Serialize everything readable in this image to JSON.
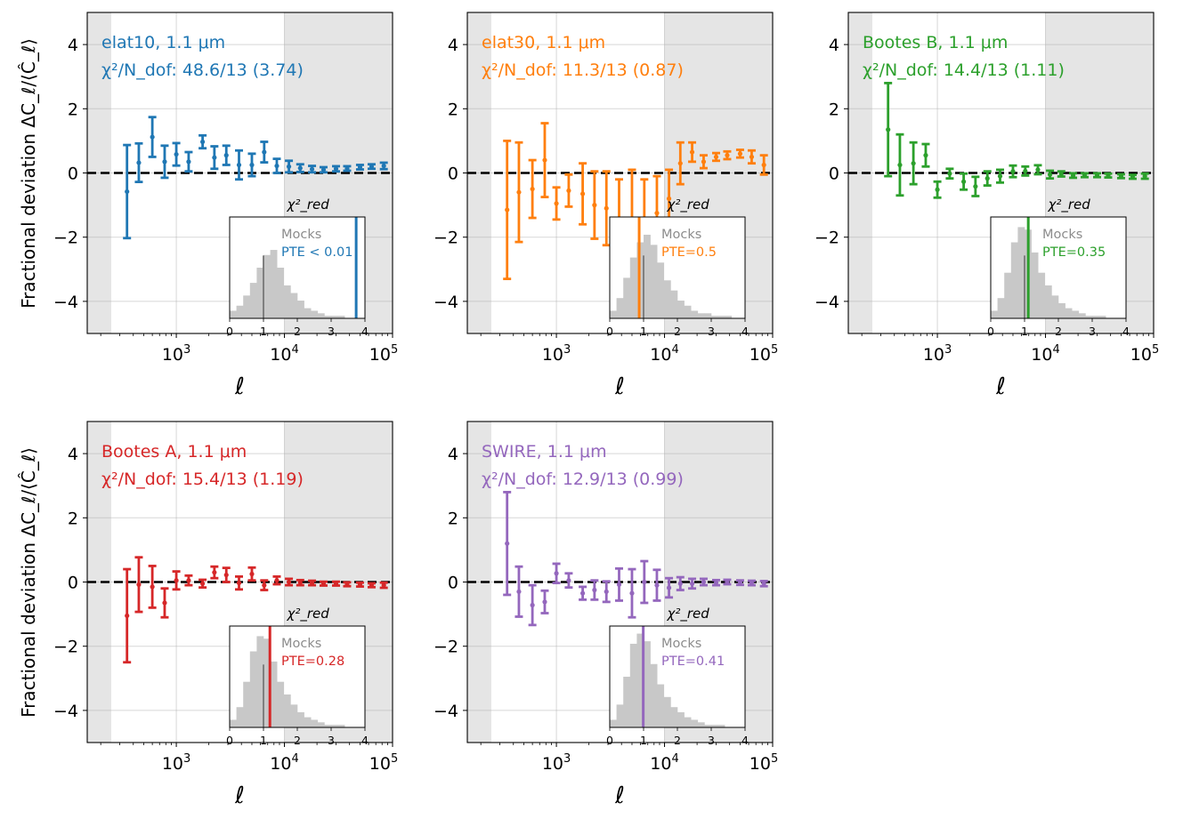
{
  "figure": {
    "ylabel": "Fractional deviation ΔC_ℓ/⟨Ĉ_ℓ⟩",
    "xlabel": "ℓ",
    "y_ticks": [
      4,
      2,
      0,
      -2,
      -4
    ],
    "y_tick_labels": [
      "4",
      "2",
      "0",
      "−2",
      "−4"
    ],
    "x_tick_labels": [
      {
        "base": "10",
        "exp": "3"
      },
      {
        "base": "10",
        "exp": "4"
      },
      {
        "base": "10",
        "exp": "5"
      }
    ],
    "inset": {
      "label": "χ²_red",
      "mocks_label": "Mocks",
      "x_ticks": [
        "0",
        "1",
        "2",
        "3",
        "4"
      ]
    },
    "colors": {
      "elat10": "#1f77b4",
      "elat30": "#ff7f0e",
      "bootesB": "#2ca02c",
      "bootesA": "#d62728",
      "swire": "#9467bd",
      "mock_hist": "#c8c8c8",
      "mock_line": "#7f7f7f",
      "masked_region": "#e5e5e5",
      "mocks_text": "#8c8c8c"
    }
  },
  "chart_data": [
    {
      "type": "errorbar",
      "field": "elat10",
      "title_name": "elat10, 1.1 μm",
      "chi2_label": "χ²/N_dof:",
      "chi2_value": "48.6/13 (3.74)",
      "pte_text": "PTE < 0.01",
      "chi2_red": 3.74,
      "xscale": "log",
      "xlim": [
        150,
        100000
      ],
      "ylim": [
        -5,
        5
      ],
      "masked_ranges": [
        [
          150,
          250
        ],
        [
          10000,
          100000
        ]
      ],
      "ell": [
        350,
        450,
        600,
        780,
        1000,
        1300,
        1750,
        2250,
        2900,
        3800,
        5000,
        6500,
        8500,
        11000,
        14000,
        18000,
        23000,
        30000,
        38000,
        50000,
        64000,
        83000
      ],
      "y": [
        -0.58,
        0.32,
        1.12,
        0.35,
        0.58,
        0.35,
        0.97,
        0.48,
        0.55,
        0.25,
        0.25,
        0.65,
        0.22,
        0.2,
        0.15,
        0.12,
        0.1,
        0.13,
        0.14,
        0.18,
        0.2,
        0.22
      ],
      "yerr": [
        1.45,
        0.6,
        0.62,
        0.5,
        0.35,
        0.3,
        0.2,
        0.35,
        0.3,
        0.45,
        0.35,
        0.32,
        0.22,
        0.18,
        0.12,
        0.1,
        0.08,
        0.08,
        0.07,
        0.07,
        0.07,
        0.1
      ],
      "mock_hist": [
        3,
        5,
        9,
        14,
        20,
        25,
        27,
        20,
        13,
        10,
        7,
        4,
        3,
        2,
        1,
        1,
        1,
        0,
        0,
        0
      ]
    },
    {
      "type": "errorbar",
      "field": "elat30",
      "title_name": "elat30, 1.1 μm",
      "chi2_label": "χ²/N_dof:",
      "chi2_value": "11.3/13 (0.87)",
      "pte_text": "PTE=0.5",
      "chi2_red": 0.87,
      "xscale": "log",
      "xlim": [
        150,
        100000
      ],
      "ylim": [
        -5,
        5
      ],
      "masked_ranges": [
        [
          150,
          250
        ],
        [
          10000,
          100000
        ]
      ],
      "ell": [
        350,
        450,
        600,
        780,
        1000,
        1300,
        1750,
        2250,
        2900,
        3800,
        5000,
        6500,
        8500,
        11000,
        14000,
        18000,
        23000,
        30000,
        38000,
        50000,
        64000,
        83000
      ],
      "y": [
        -1.15,
        -0.6,
        -0.5,
        0.4,
        -0.95,
        -0.55,
        -0.65,
        -1.0,
        -1.1,
        -1.45,
        -1.55,
        -1.8,
        -1.25,
        -0.8,
        0.3,
        0.65,
        0.35,
        0.5,
        0.55,
        0.6,
        0.5,
        0.25
      ],
      "yerr": [
        2.15,
        1.55,
        0.9,
        1.15,
        0.5,
        0.5,
        0.95,
        1.05,
        1.15,
        1.25,
        1.65,
        1.6,
        1.15,
        0.9,
        0.65,
        0.3,
        0.2,
        0.12,
        0.12,
        0.12,
        0.2,
        0.3
      ],
      "mock_hist": [
        3,
        8,
        16,
        24,
        30,
        33,
        29,
        22,
        15,
        11,
        7,
        5,
        3,
        2,
        2,
        1,
        1,
        1,
        0,
        0
      ]
    },
    {
      "type": "errorbar",
      "field": "bootesB",
      "title_name": "Bootes B, 1.1 μm",
      "chi2_label": "χ²/N_dof:",
      "chi2_value": "14.4/13 (1.11)",
      "pte_text": "PTE=0.35",
      "chi2_red": 1.11,
      "xscale": "log",
      "xlim": [
        150,
        100000
      ],
      "ylim": [
        -5,
        5
      ],
      "masked_ranges": [
        [
          150,
          250
        ],
        [
          10000,
          100000
        ]
      ],
      "ell": [
        350,
        450,
        600,
        780,
        1000,
        1300,
        1750,
        2250,
        2900,
        3800,
        5000,
        6500,
        8500,
        11000,
        14000,
        18000,
        23000,
        30000,
        38000,
        50000,
        64000,
        83000
      ],
      "y": [
        1.35,
        0.25,
        0.3,
        0.55,
        -0.52,
        -0.02,
        -0.27,
        -0.42,
        -0.17,
        -0.1,
        0.05,
        0.06,
        0.1,
        -0.05,
        -0.03,
        -0.08,
        -0.07,
        -0.07,
        -0.08,
        -0.1,
        -0.12,
        -0.1
      ],
      "yerr": [
        1.45,
        0.95,
        0.65,
        0.35,
        0.25,
        0.15,
        0.25,
        0.3,
        0.22,
        0.2,
        0.18,
        0.14,
        0.14,
        0.12,
        0.08,
        0.07,
        0.06,
        0.06,
        0.06,
        0.06,
        0.06,
        0.08
      ],
      "mock_hist": [
        3,
        8,
        18,
        30,
        36,
        35,
        26,
        18,
        13,
        9,
        6,
        4,
        3,
        2,
        1,
        1,
        1,
        0,
        0,
        0
      ]
    },
    {
      "type": "errorbar",
      "field": "bootesA",
      "title_name": "Bootes A, 1.1 μm",
      "chi2_label": "χ²/N_dof:",
      "chi2_value": "15.4/13 (1.19)",
      "pte_text": "PTE=0.28",
      "chi2_red": 1.19,
      "xscale": "log",
      "xlim": [
        150,
        100000
      ],
      "ylim": [
        -5,
        5
      ],
      "masked_ranges": [
        [
          150,
          250
        ],
        [
          10000,
          100000
        ]
      ],
      "ell": [
        350,
        450,
        600,
        780,
        1000,
        1300,
        1750,
        2250,
        2900,
        3800,
        5000,
        6500,
        8500,
        11000,
        14000,
        18000,
        23000,
        30000,
        38000,
        50000,
        64000,
        83000
      ],
      "y": [
        -1.05,
        -0.08,
        -0.15,
        -0.65,
        0.05,
        0.05,
        -0.05,
        0.3,
        0.22,
        -0.03,
        0.25,
        -0.1,
        0.05,
        0.0,
        -0.02,
        -0.03,
        -0.05,
        -0.05,
        -0.07,
        -0.08,
        -0.1,
        -0.1
      ],
      "yerr": [
        1.45,
        0.85,
        0.65,
        0.45,
        0.28,
        0.15,
        0.12,
        0.18,
        0.22,
        0.2,
        0.2,
        0.15,
        0.12,
        0.1,
        0.08,
        0.07,
        0.06,
        0.06,
        0.06,
        0.06,
        0.06,
        0.08
      ],
      "mock_hist": [
        3,
        8,
        18,
        30,
        36,
        35,
        26,
        18,
        13,
        9,
        6,
        4,
        3,
        2,
        1,
        1,
        1,
        0,
        0,
        0
      ]
    },
    {
      "type": "errorbar",
      "field": "swire",
      "title_name": "SWIRE, 1.1 μm",
      "chi2_label": "χ²/N_dof:",
      "chi2_value": "12.9/13 (0.99)",
      "pte_text": "PTE=0.41",
      "chi2_red": 0.99,
      "xscale": "log",
      "xlim": [
        150,
        100000
      ],
      "ylim": [
        -5,
        5
      ],
      "masked_ranges": [
        [
          150,
          250
        ],
        [
          10000,
          100000
        ]
      ],
      "ell": [
        350,
        450,
        600,
        780,
        1000,
        1300,
        1750,
        2250,
        2900,
        3800,
        5000,
        6500,
        8500,
        11000,
        14000,
        18000,
        23000,
        30000,
        38000,
        50000,
        64000,
        83000
      ],
      "y": [
        1.2,
        -0.3,
        -0.72,
        -0.62,
        0.27,
        0.05,
        -0.35,
        -0.25,
        -0.3,
        -0.08,
        -0.35,
        0.0,
        -0.1,
        -0.18,
        -0.05,
        -0.05,
        0.0,
        -0.02,
        0.0,
        -0.02,
        -0.03,
        -0.05
      ],
      "yerr": [
        1.6,
        0.78,
        0.62,
        0.35,
        0.3,
        0.22,
        0.2,
        0.3,
        0.32,
        0.5,
        0.75,
        0.65,
        0.48,
        0.3,
        0.2,
        0.15,
        0.1,
        0.08,
        0.07,
        0.07,
        0.07,
        0.08
      ],
      "mock_hist": [
        3,
        9,
        20,
        33,
        37,
        34,
        25,
        17,
        12,
        8,
        6,
        4,
        3,
        2,
        1,
        1,
        1,
        0,
        0,
        0
      ]
    }
  ]
}
